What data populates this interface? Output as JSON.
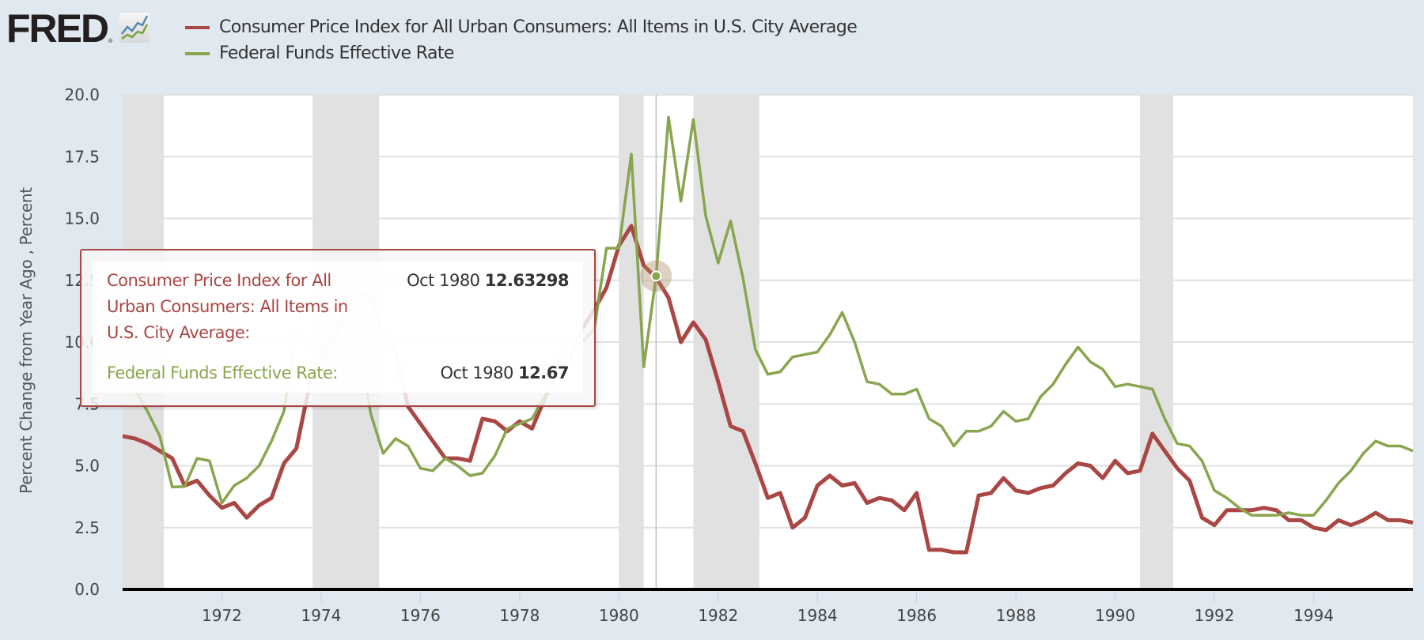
{
  "header": {
    "logo_text": "FRED",
    "logo_reg": "®",
    "logo_icon": "chart-line-icon"
  },
  "chart_data": {
    "type": "line",
    "title": "",
    "xlabel": "",
    "ylabel": "Percent Change from Year Ago , Percent",
    "ylim": [
      0,
      20
    ],
    "xlim": [
      1970.0,
      1996.0
    ],
    "yticks": [
      "0.0",
      "2.5",
      "5.0",
      "7.5",
      "10.0",
      "12.5",
      "15.0",
      "17.5",
      "20.0"
    ],
    "ytick_values": [
      0,
      2.5,
      5,
      7.5,
      10,
      12.5,
      15,
      17.5,
      20
    ],
    "xticks": [
      "1972",
      "1974",
      "1976",
      "1978",
      "1980",
      "1982",
      "1984",
      "1986",
      "1988",
      "1990",
      "1992",
      "1994"
    ],
    "xtick_values": [
      1972,
      1974,
      1976,
      1978,
      1980,
      1982,
      1984,
      1986,
      1988,
      1990,
      1992,
      1994
    ],
    "grid": true,
    "legend_position": "top-left",
    "recessions": [
      [
        1970.0,
        1970.83
      ],
      [
        1973.83,
        1975.17
      ],
      [
        1980.0,
        1980.5
      ],
      [
        1981.5,
        1982.83
      ],
      [
        1990.5,
        1991.17
      ]
    ],
    "x": [
      1970.0,
      1970.25,
      1970.5,
      1970.75,
      1971.0,
      1971.25,
      1971.5,
      1971.75,
      1972.0,
      1972.25,
      1972.5,
      1972.75,
      1973.0,
      1973.25,
      1973.5,
      1973.75,
      1974.0,
      1974.25,
      1974.5,
      1974.75,
      1975.0,
      1975.25,
      1975.5,
      1975.75,
      1976.0,
      1976.25,
      1976.5,
      1976.75,
      1977.0,
      1977.25,
      1977.5,
      1977.75,
      1978.0,
      1978.25,
      1978.5,
      1978.75,
      1979.0,
      1979.25,
      1979.5,
      1979.75,
      1980.0,
      1980.25,
      1980.5,
      1980.75,
      1981.0,
      1981.25,
      1981.5,
      1981.75,
      1982.0,
      1982.25,
      1982.5,
      1982.75,
      1983.0,
      1983.25,
      1983.5,
      1983.75,
      1984.0,
      1984.25,
      1984.5,
      1984.75,
      1985.0,
      1985.25,
      1985.5,
      1985.75,
      1986.0,
      1986.25,
      1986.5,
      1986.75,
      1987.0,
      1987.25,
      1987.5,
      1987.75,
      1988.0,
      1988.25,
      1988.5,
      1988.75,
      1989.0,
      1989.25,
      1989.5,
      1989.75,
      1990.0,
      1990.25,
      1990.5,
      1990.75,
      1991.0,
      1991.25,
      1991.5,
      1991.75,
      1992.0,
      1992.25,
      1992.5,
      1992.75,
      1993.0,
      1993.25,
      1993.5,
      1993.75,
      1994.0,
      1994.25,
      1994.5,
      1994.75,
      1995.0,
      1995.25,
      1995.5,
      1995.75,
      1996.0
    ],
    "series": [
      {
        "name": "Consumer Price Index for All Urban Consumers: All Items in U.S. City Average",
        "color": "#aa4643",
        "values": [
          6.2,
          6.1,
          5.9,
          5.6,
          5.3,
          4.2,
          4.4,
          3.8,
          3.3,
          3.5,
          2.9,
          3.4,
          3.7,
          5.1,
          5.7,
          8.1,
          9.4,
          10.1,
          11.5,
          12.0,
          11.8,
          10.2,
          9.7,
          7.4,
          6.7,
          6.0,
          5.3,
          5.3,
          5.2,
          6.9,
          6.8,
          6.4,
          6.8,
          6.5,
          7.7,
          8.9,
          9.3,
          10.5,
          11.3,
          12.2,
          13.9,
          14.7,
          13.1,
          12.6,
          11.8,
          10.0,
          10.8,
          10.1,
          8.4,
          6.6,
          6.4,
          5.1,
          3.7,
          3.9,
          2.5,
          2.9,
          4.2,
          4.6,
          4.2,
          4.3,
          3.5,
          3.7,
          3.6,
          3.2,
          3.9,
          1.6,
          1.6,
          1.5,
          1.5,
          3.8,
          3.9,
          4.5,
          4.0,
          3.9,
          4.1,
          4.2,
          4.7,
          5.1,
          5.0,
          4.5,
          5.2,
          4.7,
          4.8,
          6.3,
          5.6,
          4.9,
          4.4,
          2.9,
          2.6,
          3.2,
          3.2,
          3.2,
          3.3,
          3.2,
          2.8,
          2.8,
          2.5,
          2.4,
          2.8,
          2.6,
          2.8,
          3.1,
          2.8,
          2.8,
          2.7
        ]
      },
      {
        "name": "Federal Funds Effective Rate",
        "color": "#89a54e",
        "values": [
          8.98,
          8.1,
          7.2,
          6.2,
          4.14,
          4.16,
          5.3,
          5.2,
          3.5,
          4.2,
          4.5,
          5.0,
          6.0,
          7.2,
          10.4,
          10.0,
          9.6,
          11.3,
          12.9,
          10.1,
          7.1,
          5.5,
          6.1,
          5.8,
          4.9,
          4.8,
          5.3,
          5.0,
          4.6,
          4.7,
          5.4,
          6.5,
          6.7,
          6.9,
          7.8,
          9.0,
          10.1,
          10.0,
          10.5,
          13.8,
          13.8,
          17.6,
          9.0,
          12.67,
          19.1,
          15.7,
          19.0,
          15.1,
          13.2,
          14.9,
          12.6,
          9.7,
          8.7,
          8.8,
          9.4,
          9.5,
          9.6,
          10.3,
          11.2,
          10.0,
          8.4,
          8.3,
          7.9,
          7.9,
          8.1,
          6.9,
          6.6,
          5.8,
          6.4,
          6.4,
          6.6,
          7.2,
          6.8,
          6.9,
          7.8,
          8.3,
          9.1,
          9.8,
          9.2,
          8.9,
          8.2,
          8.3,
          8.2,
          8.1,
          6.9,
          5.9,
          5.8,
          5.2,
          4.0,
          3.7,
          3.3,
          3.0,
          3.0,
          3.0,
          3.1,
          3.0,
          3.0,
          3.6,
          4.3,
          4.8,
          5.5,
          6.0,
          5.8,
          5.8,
          5.6
        ]
      }
    ],
    "hover": {
      "x": 1980.75,
      "date_label": "Oct 1980",
      "cpi_value": "12.63298",
      "fedfunds_value": "12.67"
    }
  },
  "legend": {
    "items": [
      {
        "label": "Consumer Price Index for All Urban Consumers: All Items in U.S. City Average",
        "color": "#aa4643"
      },
      {
        "label": "Federal Funds Effective Rate",
        "color": "#89a54e"
      }
    ]
  },
  "tooltip": {
    "cpi_name": "Consumer Price Index for All Urban Consumers: All Items in U.S. City Average:",
    "cpi_date": "Oct 1980",
    "cpi_value": "12.63298",
    "ff_name": "Federal Funds Effective Rate:",
    "ff_date": "Oct 1980",
    "ff_value": "12.67"
  },
  "colors": {
    "background": "#e1e9f0",
    "plot": "#ffffff",
    "recession": "#e1e1e1",
    "grid": "#e1e1e1",
    "cpi": "#aa4643",
    "fedfunds": "#89a54e"
  }
}
